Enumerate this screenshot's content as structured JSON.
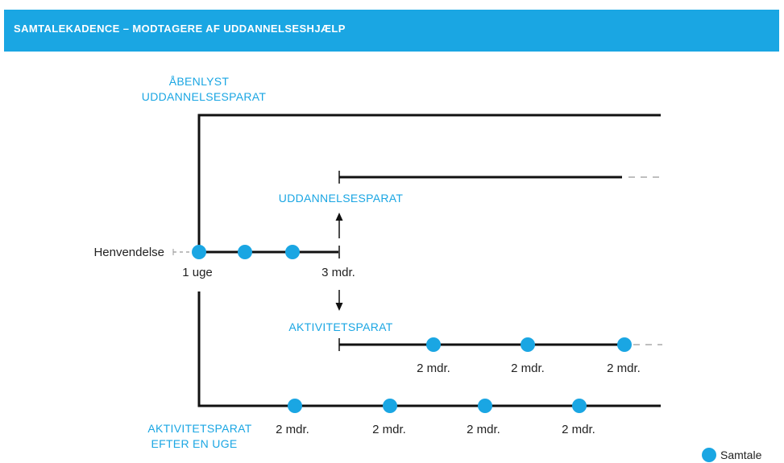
{
  "header": {
    "title": "SAMTALEKADENCE – MODTAGERE AF UDDANNELSESHJÆLP"
  },
  "diagram": {
    "tracks": {
      "open_line1": "ÅBENLYST",
      "open_line2": "UDDANNELSESPARAT",
      "educ_ready": "UDDANNELSESPARAT",
      "activity_ready": "AKTIVITETSPARAT",
      "activity_week_line1": "AKTIVITETSPARAT",
      "activity_week_line2": "EFTER EN UGE"
    },
    "labels": {
      "start": "Henvendelse",
      "week": "1 uge",
      "three_months": "3 mdr.",
      "interval": "2 mdr."
    },
    "legend": {
      "label": "Samtale"
    },
    "colors": {
      "accent": "#1aa6e3",
      "line": "#111111"
    }
  }
}
